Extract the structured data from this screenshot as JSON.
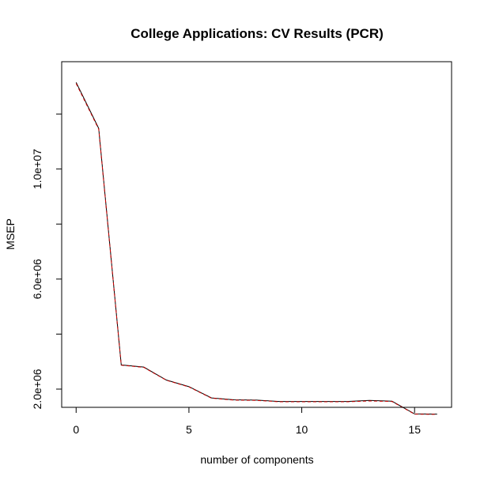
{
  "chart_data": {
    "type": "line",
    "title": "College Applications: CV Results (PCR)",
    "xlabel": "number of components",
    "ylabel": "MSEP",
    "xlim": [
      -0.64,
      16.64
    ],
    "ylim": [
      1338000,
      13902000
    ],
    "x_ticks": [
      0,
      5,
      10,
      15
    ],
    "x_tick_labels": [
      "0",
      "5",
      "10",
      "15"
    ],
    "y_ticks": [
      2000000,
      4000000,
      6000000,
      8000000,
      10000000,
      12000000
    ],
    "y_tick_labels": [
      "2.0e+06",
      "",
      "6.0e+06",
      "",
      "1.0e+07",
      ""
    ],
    "grid": false,
    "legend": "none",
    "series": [
      {
        "color": "#000000",
        "dash": "solid",
        "x": [
          0,
          1,
          2,
          3,
          4,
          5,
          6,
          7,
          8,
          9,
          10,
          11,
          12,
          13,
          14,
          15,
          16
        ],
        "y": [
          13150000,
          11480000,
          2880000,
          2800000,
          2330000,
          2090000,
          1680000,
          1610000,
          1600000,
          1550000,
          1550000,
          1550000,
          1550000,
          1590000,
          1560000,
          1100000,
          1090000
        ]
      },
      {
        "color": "#cc0000",
        "dash": "dashed",
        "x": [
          0,
          1,
          2,
          3,
          4,
          5,
          6,
          7,
          8,
          9,
          10,
          11,
          12,
          13,
          14,
          15,
          16
        ],
        "y": [
          13110000,
          11450000,
          2870000,
          2790000,
          2320000,
          2080000,
          1670000,
          1600000,
          1590000,
          1540000,
          1540000,
          1540000,
          1540000,
          1570000,
          1550000,
          1090000,
          1080000
        ]
      }
    ]
  }
}
